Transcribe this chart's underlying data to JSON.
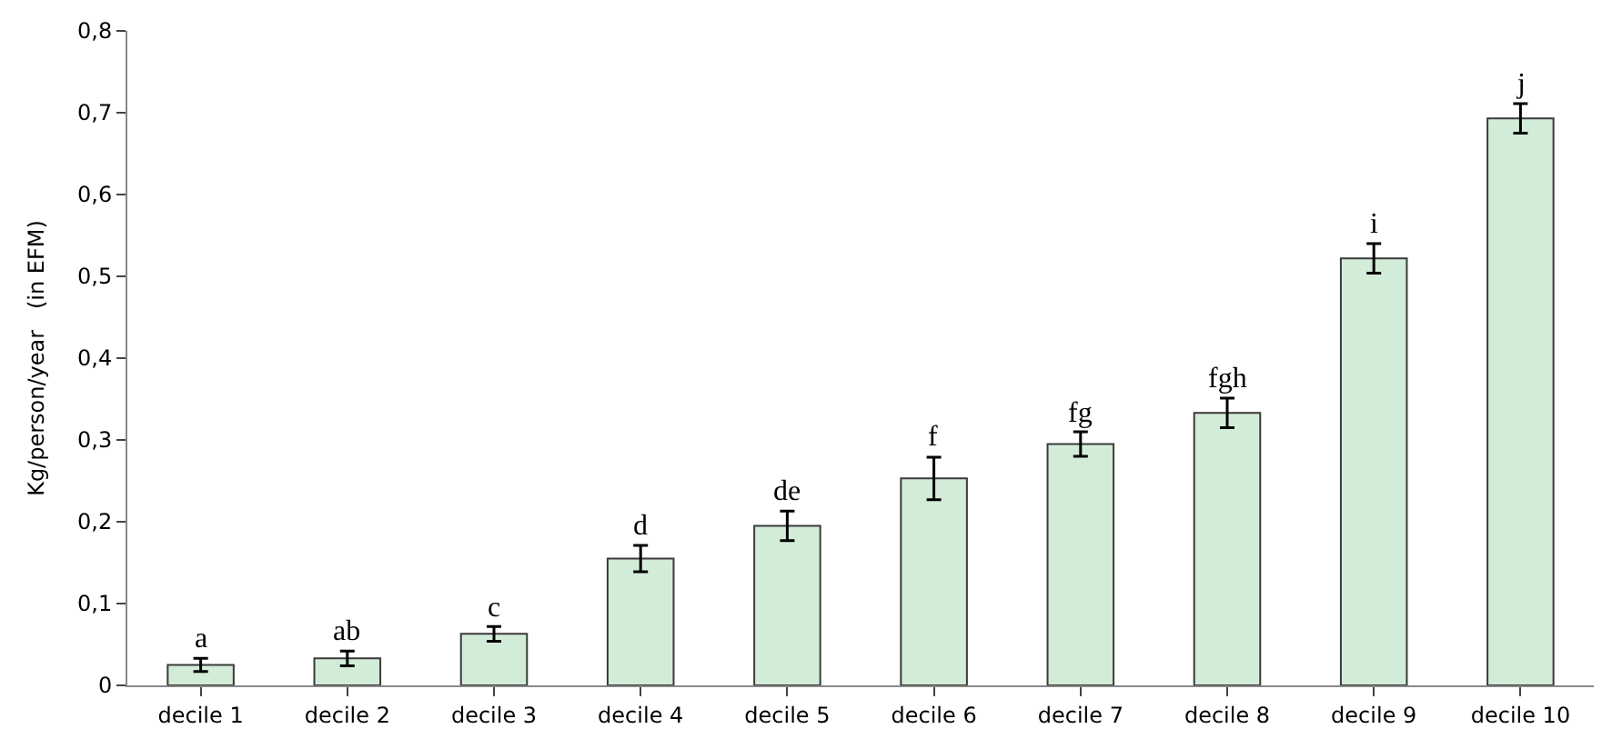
{
  "chart_data": {
    "type": "bar",
    "ylabel": "Kg/person/year   (in EFM)",
    "categories": [
      "decile 1",
      "decile 2",
      "decile 3",
      "decile 4",
      "decile 5",
      "decile 6",
      "decile 7",
      "decile 8",
      "decile 9",
      "decile 10"
    ],
    "values": [
      0.025,
      0.033,
      0.063,
      0.155,
      0.195,
      0.253,
      0.295,
      0.333,
      0.522,
      0.693
    ],
    "errors": [
      0.008,
      0.009,
      0.009,
      0.016,
      0.018,
      0.026,
      0.015,
      0.018,
      0.018,
      0.018
    ],
    "color": "#d3ecd8",
    "ylim": [
      0,
      0.8
    ],
    "yticks": [
      0,
      {
        "value": 0.1,
        "label": "0,1"
      },
      {
        "value": 0.2,
        "label": "0,2"
      },
      {
        "value": 0.3,
        "label": "0,3"
      },
      {
        "value": 0.4,
        "label": "0,4"
      },
      {
        "value": 0.5,
        "label": "0,5"
      },
      {
        "value": 0.6,
        "label": "0,6"
      },
      {
        "value": 0.7,
        "label": "0,7"
      },
      {
        "value": 0.8,
        "label": "0,8"
      }
    ],
    "annotations": [
      {
        "text": "a",
        "x": "decile 1",
        "y": 0.033
      },
      {
        "text": "ab",
        "x": "decile 2",
        "y": 0.042
      },
      {
        "text": "c",
        "x": "decile 3",
        "y": 0.072
      },
      {
        "text": "d",
        "x": "decile 4",
        "y": 0.171
      },
      {
        "text": "de",
        "x": "decile 5",
        "y": 0.213
      },
      {
        "text": "f",
        "x": "decile 6",
        "y": 0.279
      },
      {
        "text": "fg",
        "x": "decile 7",
        "y": 0.31
      },
      {
        "text": "fgh",
        "x": "decile 8",
        "y": 0.351
      },
      {
        "text": "i",
        "x": "decile 9",
        "y": 0.54
      },
      {
        "text": "j",
        "x": "decile 10",
        "y": 0.711
      }
    ]
  }
}
